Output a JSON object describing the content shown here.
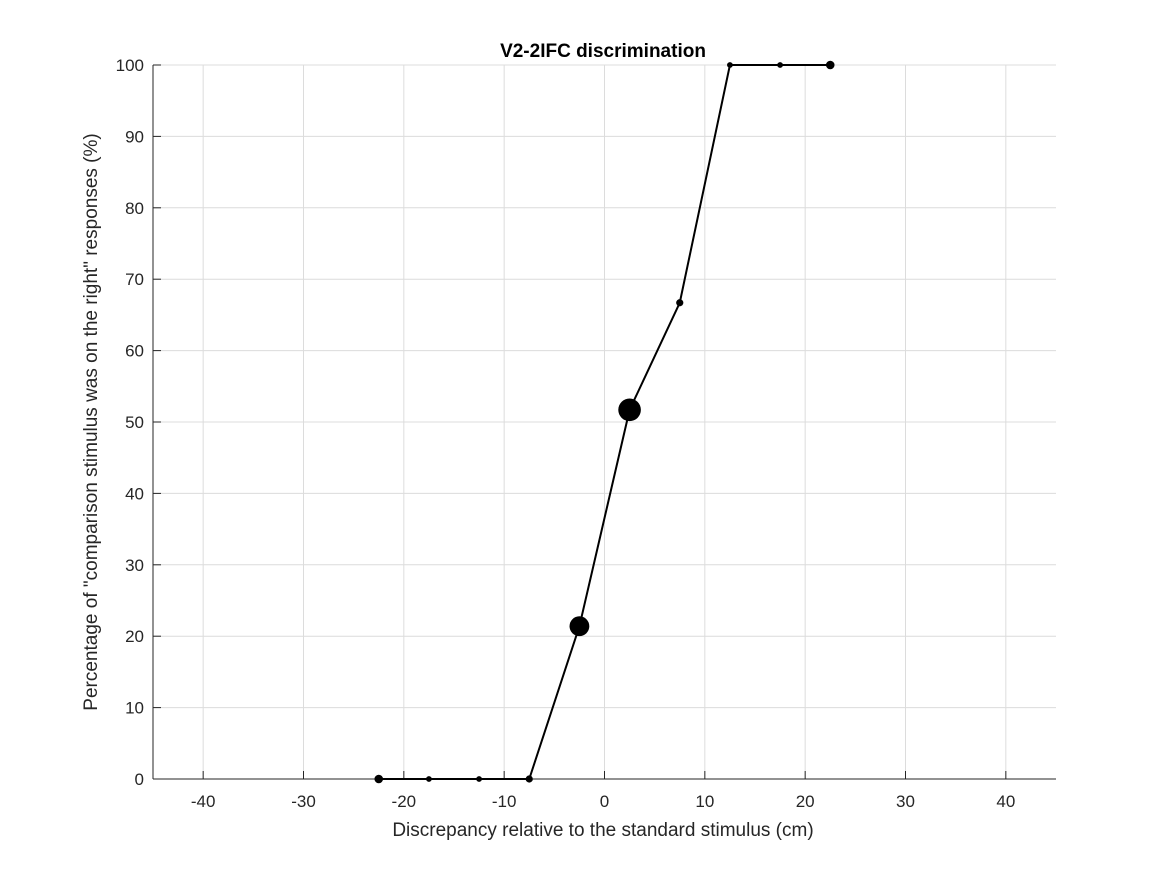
{
  "chart_data": {
    "type": "line",
    "title": "V2-2IFC discrimination",
    "xlabel": "Discrepancy relative to the standard stimulus (cm)",
    "ylabel": "Percentage of \"comparison stimulus was on the right\" responses (%)",
    "xlim": [
      -45,
      45
    ],
    "ylim": [
      0,
      100
    ],
    "xticks": [
      -40,
      -30,
      -20,
      -10,
      0,
      10,
      20,
      30,
      40
    ],
    "yticks": [
      0,
      10,
      20,
      30,
      40,
      50,
      60,
      70,
      80,
      90,
      100
    ],
    "grid": true,
    "series": [
      {
        "color": "#000000",
        "x": [
          -22.5,
          -17.5,
          -12.5,
          -7.5,
          -2.5,
          2.5,
          7.5,
          12.5,
          17.5,
          22.5
        ],
        "y": [
          0,
          0,
          0,
          0,
          21.4,
          51.7,
          66.7,
          100,
          100,
          100
        ],
        "marker_weight": [
          2,
          1,
          1,
          1.5,
          6,
          7,
          1.5,
          1,
          1,
          2
        ]
      }
    ]
  }
}
